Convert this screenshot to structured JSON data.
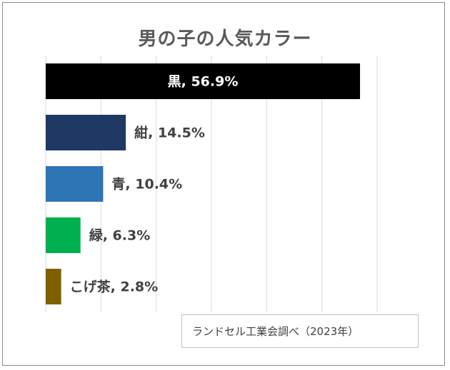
{
  "chart_data": {
    "type": "bar",
    "orientation": "horizontal",
    "title": "男の子の人気カラー",
    "categories": [
      "黒",
      "紺",
      "青",
      "緑",
      "こげ茶"
    ],
    "values": [
      56.9,
      14.5,
      10.4,
      6.3,
      2.8
    ],
    "data_labels": [
      "黒, 56.9%",
      "紺, 14.5%",
      "青, 10.4%",
      "緑, 6.3%",
      "こげ茶, 2.8%"
    ],
    "unit": "%",
    "colors": [
      "#000000",
      "#1f3864",
      "#2e75b6",
      "#00b050",
      "#7f6000"
    ],
    "xlim": [
      0,
      60
    ],
    "grid": true,
    "xlabel": "",
    "ylabel": ""
  },
  "source_note": "ランドセル工業会調べ（2023年）"
}
